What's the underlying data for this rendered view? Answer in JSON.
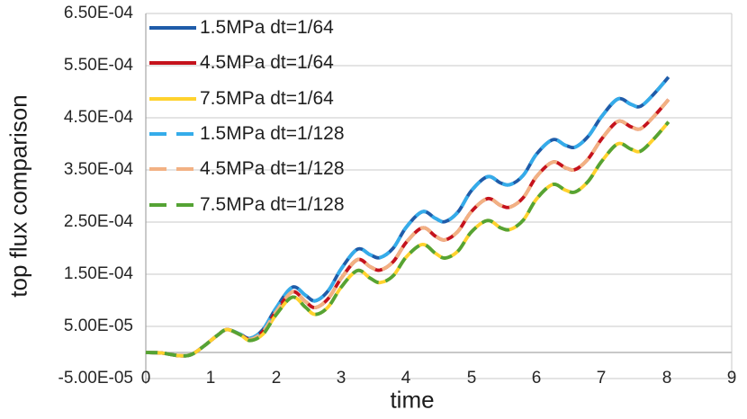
{
  "chart_data": {
    "type": "line",
    "title": "",
    "xlabel": "time",
    "ylabel": "top flux comparison",
    "grid": true,
    "legend_position": "top-left-inside",
    "colors": {
      "gridline": "#C9C9C9",
      "axis_line": "#A6A6A6",
      "plot_border": "#C9C9C9",
      "text": "#262626"
    },
    "x_axis": {
      "ticks": [
        0,
        1,
        2,
        3,
        4,
        5,
        6,
        7,
        8,
        9
      ],
      "range": [
        0,
        9
      ]
    },
    "y_axis": {
      "tick_labels": [
        "6.50E-04",
        "5.50E-04",
        "4.50E-04",
        "3.50E-04",
        "2.50E-04",
        "1.50E-04",
        "5.00E-05",
        "-5.00E-05"
      ],
      "tick_values": [
        0.00065,
        0.00055,
        0.00045,
        0.00035,
        0.00025,
        0.00015,
        5e-05,
        -5e-05
      ],
      "range": [
        -5e-05,
        0.00065
      ]
    },
    "curve_value_scale": 0.0001,
    "series": [
      {
        "name": "1.5MPa dt=1/64",
        "color": "#1F5CA9",
        "style": "solid",
        "curve": "MPa15"
      },
      {
        "name": "4.5MPa dt=1/64",
        "color": "#C5121C",
        "style": "solid",
        "curve": "MPa45"
      },
      {
        "name": "7.5MPa dt=1/64",
        "color": "#FFD22E",
        "style": "solid",
        "curve": "MPa75"
      },
      {
        "name": "1.5MPa dt=1/128",
        "color": "#35ACEA",
        "style": "dashed",
        "curve": "MPa15"
      },
      {
        "name": "4.5MPa dt=1/128",
        "color": "#F2B183",
        "style": "dashed",
        "curve": "MPa45"
      },
      {
        "name": "7.5MPa dt=1/128",
        "color": "#55A334",
        "style": "dashed",
        "curve": "MPa75"
      }
    ],
    "curves": {
      "MPa15": [
        [
          0,
          0
        ],
        [
          0.25,
          -0.01
        ],
        [
          0.5,
          -0.06
        ],
        [
          0.7,
          -0.04
        ],
        [
          0.9,
          0.13
        ],
        [
          1.1,
          0.33
        ],
        [
          1.25,
          0.44
        ],
        [
          1.45,
          0.35
        ],
        [
          1.6,
          0.27
        ],
        [
          1.8,
          0.44
        ],
        [
          2,
          0.85
        ],
        [
          2.25,
          1.25
        ],
        [
          2.45,
          1.1
        ],
        [
          2.6,
          0.99
        ],
        [
          2.8,
          1.18
        ],
        [
          3,
          1.6
        ],
        [
          3.25,
          1.98
        ],
        [
          3.45,
          1.87
        ],
        [
          3.6,
          1.82
        ],
        [
          3.8,
          2
        ],
        [
          4,
          2.4
        ],
        [
          4.25,
          2.7
        ],
        [
          4.45,
          2.57
        ],
        [
          4.6,
          2.51
        ],
        [
          4.8,
          2.7
        ],
        [
          5,
          3.1
        ],
        [
          5.25,
          3.37
        ],
        [
          5.45,
          3.25
        ],
        [
          5.6,
          3.22
        ],
        [
          5.8,
          3.4
        ],
        [
          6,
          3.8
        ],
        [
          6.25,
          4.08
        ],
        [
          6.45,
          3.97
        ],
        [
          6.6,
          3.94
        ],
        [
          6.8,
          4.15
        ],
        [
          7,
          4.52
        ],
        [
          7.25,
          4.86
        ],
        [
          7.45,
          4.76
        ],
        [
          7.6,
          4.72
        ],
        [
          7.8,
          4.95
        ],
        [
          8.03,
          5.28
        ]
      ],
      "MPa45": [
        [
          0,
          0
        ],
        [
          0.25,
          -0.01
        ],
        [
          0.5,
          -0.06
        ],
        [
          0.7,
          -0.04
        ],
        [
          0.9,
          0.13
        ],
        [
          1.1,
          0.33
        ],
        [
          1.25,
          0.44
        ],
        [
          1.45,
          0.34
        ],
        [
          1.6,
          0.25
        ],
        [
          1.8,
          0.4
        ],
        [
          2,
          0.78
        ],
        [
          2.25,
          1.16
        ],
        [
          2.45,
          0.98
        ],
        [
          2.6,
          0.86
        ],
        [
          2.8,
          1.03
        ],
        [
          3,
          1.42
        ],
        [
          3.25,
          1.78
        ],
        [
          3.45,
          1.64
        ],
        [
          3.6,
          1.58
        ],
        [
          3.8,
          1.74
        ],
        [
          4,
          2.11
        ],
        [
          4.25,
          2.39
        ],
        [
          4.45,
          2.23
        ],
        [
          4.6,
          2.16
        ],
        [
          4.8,
          2.33
        ],
        [
          5,
          2.7
        ],
        [
          5.25,
          2.95
        ],
        [
          5.45,
          2.82
        ],
        [
          5.6,
          2.79
        ],
        [
          5.8,
          2.97
        ],
        [
          6,
          3.37
        ],
        [
          6.25,
          3.65
        ],
        [
          6.45,
          3.54
        ],
        [
          6.6,
          3.51
        ],
        [
          6.8,
          3.72
        ],
        [
          7,
          4.09
        ],
        [
          7.25,
          4.43
        ],
        [
          7.45,
          4.33
        ],
        [
          7.6,
          4.29
        ],
        [
          7.8,
          4.52
        ],
        [
          8.03,
          4.85
        ]
      ],
      "MPa75": [
        [
          0,
          0
        ],
        [
          0.25,
          -0.01
        ],
        [
          0.5,
          -0.06
        ],
        [
          0.7,
          -0.04
        ],
        [
          0.9,
          0.13
        ],
        [
          1.1,
          0.33
        ],
        [
          1.25,
          0.44
        ],
        [
          1.45,
          0.34
        ],
        [
          1.6,
          0.23
        ],
        [
          1.8,
          0.35
        ],
        [
          2,
          0.72
        ],
        [
          2.25,
          1.06
        ],
        [
          2.45,
          0.87
        ],
        [
          2.6,
          0.73
        ],
        [
          2.8,
          0.87
        ],
        [
          3,
          1.25
        ],
        [
          3.25,
          1.57
        ],
        [
          3.45,
          1.42
        ],
        [
          3.6,
          1.34
        ],
        [
          3.8,
          1.47
        ],
        [
          4,
          1.83
        ],
        [
          4.25,
          2.07
        ],
        [
          4.45,
          1.9
        ],
        [
          4.6,
          1.81
        ],
        [
          4.8,
          1.95
        ],
        [
          5,
          2.31
        ],
        [
          5.25,
          2.53
        ],
        [
          5.45,
          2.39
        ],
        [
          5.6,
          2.36
        ],
        [
          5.8,
          2.54
        ],
        [
          6,
          2.94
        ],
        [
          6.25,
          3.22
        ],
        [
          6.45,
          3.11
        ],
        [
          6.6,
          3.08
        ],
        [
          6.8,
          3.29
        ],
        [
          7,
          3.66
        ],
        [
          7.25,
          4
        ],
        [
          7.45,
          3.9
        ],
        [
          7.6,
          3.86
        ],
        [
          7.8,
          4.09
        ],
        [
          8.03,
          4.42
        ]
      ]
    }
  }
}
